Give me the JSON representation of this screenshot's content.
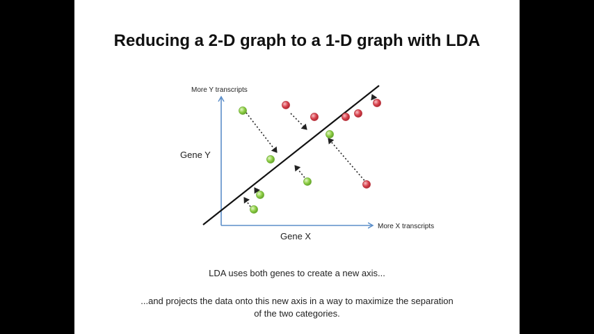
{
  "slide": {
    "title": "Reducing a 2-D graph to a 1-D graph with LDA",
    "caption_line1": "LDA uses both genes to create a new axis...",
    "caption_line2": "...and projects the data onto this new axis in a way to maximize the separation of the two categories."
  },
  "diagram": {
    "y_axis_top_label": "More Y transcripts",
    "y_axis_label": "Gene Y",
    "x_axis_right_label": "More X transcripts",
    "x_axis_label": "Gene X",
    "colors": {
      "axis": "#5b8ec9",
      "new_axis": "#111111",
      "green_point": "#8fcf45",
      "red_point": "#d9434e",
      "arrow": "#222222"
    }
  }
}
